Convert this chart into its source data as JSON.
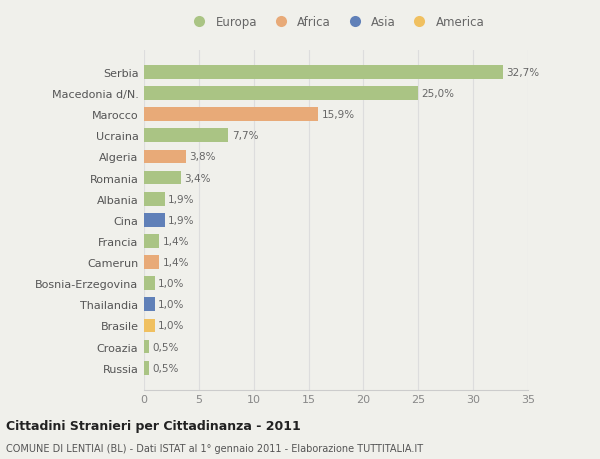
{
  "categories": [
    "Russia",
    "Croazia",
    "Brasile",
    "Thailandia",
    "Bosnia-Erzegovina",
    "Camerun",
    "Francia",
    "Cina",
    "Albania",
    "Romania",
    "Algeria",
    "Ucraina",
    "Marocco",
    "Macedonia d/N.",
    "Serbia"
  ],
  "values": [
    0.5,
    0.5,
    1.0,
    1.0,
    1.0,
    1.4,
    1.4,
    1.9,
    1.9,
    3.4,
    3.8,
    7.7,
    15.9,
    25.0,
    32.7
  ],
  "continents": [
    "Europa",
    "Europa",
    "America",
    "Asia",
    "Europa",
    "Africa",
    "Europa",
    "Asia",
    "Europa",
    "Europa",
    "Africa",
    "Europa",
    "Africa",
    "Europa",
    "Europa"
  ],
  "labels": [
    "0,5%",
    "0,5%",
    "1,0%",
    "1,0%",
    "1,0%",
    "1,4%",
    "1,4%",
    "1,9%",
    "1,9%",
    "3,4%",
    "3,8%",
    "7,7%",
    "15,9%",
    "25,0%",
    "32,7%"
  ],
  "colors": {
    "Europa": "#aac484",
    "Africa": "#e8aa78",
    "Asia": "#6080b8",
    "America": "#f0c060"
  },
  "background_color": "#f0f0eb",
  "plot_bg": "#f0f0eb",
  "title": "Cittadini Stranieri per Cittadinanza - 2011",
  "subtitle": "COMUNE DI LENTIAI (BL) - Dati ISTAT al 1° gennaio 2011 - Elaborazione TUTTITALIA.IT",
  "xlim": [
    0,
    35
  ],
  "xticks": [
    0,
    5,
    10,
    15,
    20,
    25,
    30,
    35
  ],
  "legend_order": [
    "Europa",
    "Africa",
    "Asia",
    "America"
  ]
}
